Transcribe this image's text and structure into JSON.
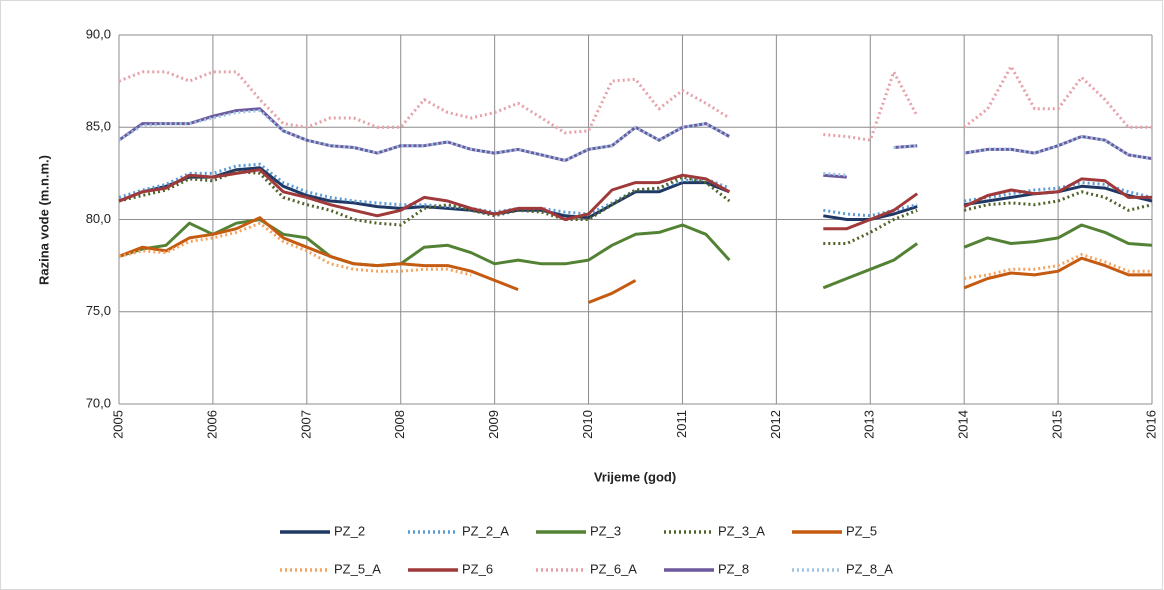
{
  "chart_data": {
    "type": "line",
    "ylabel": "Razina vode (m.n.m.)",
    "xlabel": "Vrijeme (god)",
    "x": [
      2005,
      2005.25,
      2005.5,
      2005.75,
      2006,
      2006.25,
      2006.5,
      2006.75,
      2007,
      2007.25,
      2007.5,
      2007.75,
      2008,
      2008.25,
      2008.5,
      2008.75,
      2009,
      2009.25,
      2009.5,
      2009.75,
      2010,
      2010.25,
      2010.5,
      2010.75,
      2011,
      2011.25,
      2011.5,
      2011.75,
      2012,
      2012.25,
      2012.5,
      2012.75,
      2013,
      2013.25,
      2013.5,
      2013.75,
      2014,
      2014.25,
      2014.5,
      2014.75,
      2015,
      2015.25,
      2015.5,
      2015.75,
      2016
    ],
    "xlim": [
      2005,
      2016
    ],
    "xticks": [
      2005,
      2006,
      2007,
      2008,
      2009,
      2010,
      2011,
      2012,
      2013,
      2014,
      2015,
      2016
    ],
    "ylim": [
      70,
      90
    ],
    "yticks": [
      {
        "value": 70,
        "label": "70,0"
      },
      {
        "value": 75,
        "label": "75,0"
      },
      {
        "value": 80,
        "label": "80,0"
      },
      {
        "value": 85,
        "label": "85,0"
      },
      {
        "value": 90,
        "label": "90,0"
      }
    ],
    "grid": true,
    "legend": "bottom",
    "series": [
      {
        "name": "PZ_2",
        "color": "#1f3864",
        "dashed": false,
        "values": [
          81,
          81.5,
          81.8,
          82.3,
          82.3,
          82.7,
          82.8,
          81.8,
          81.3,
          81.0,
          80.9,
          80.7,
          80.6,
          80.7,
          80.6,
          80.5,
          80.3,
          80.5,
          80.5,
          80.2,
          80.1,
          80.8,
          81.5,
          81.5,
          82.0,
          82.0,
          81.5,
          null,
          null,
          null,
          80.2,
          80.0,
          80.0,
          80.3,
          80.7,
          null,
          80.8,
          81.0,
          81.2,
          81.4,
          81.5,
          81.8,
          81.7,
          81.3,
          81.0
        ]
      },
      {
        "name": "PZ_2_A",
        "color": "#5b9bd5",
        "dashed": true,
        "values": [
          81.2,
          81.6,
          81.9,
          82.5,
          82.5,
          82.9,
          83.0,
          82.0,
          81.5,
          81.2,
          81.0,
          80.9,
          80.8,
          80.8,
          80.7,
          80.6,
          80.4,
          80.6,
          80.6,
          80.4,
          80.3,
          80.9,
          81.6,
          81.7,
          82.1,
          82.2,
          81.7,
          null,
          null,
          null,
          80.5,
          80.3,
          80.2,
          80.5,
          80.8,
          null,
          81.0,
          81.2,
          81.4,
          81.6,
          81.7,
          82.0,
          81.9,
          81.5,
          81.2
        ]
      },
      {
        "name": "PZ_3",
        "color": "#548235",
        "dashed": false,
        "values": [
          78.0,
          78.4,
          78.6,
          79.8,
          79.2,
          79.8,
          80.0,
          79.2,
          79.0,
          78.0,
          77.6,
          77.5,
          77.6,
          78.5,
          78.6,
          78.2,
          77.6,
          77.8,
          77.6,
          77.6,
          77.8,
          78.6,
          79.2,
          79.3,
          79.7,
          79.2,
          77.8,
          null,
          null,
          null,
          76.3,
          76.8,
          77.3,
          77.8,
          78.7,
          null,
          78.5,
          79.0,
          78.7,
          78.8,
          79.0,
          79.7,
          79.3,
          78.7,
          78.6
        ]
      },
      {
        "name": "PZ_3_A",
        "color": "#4f6228",
        "dashed": true,
        "values": [
          81.0,
          81.3,
          81.6,
          82.2,
          82.1,
          82.6,
          82.5,
          81.2,
          80.8,
          80.5,
          80.0,
          79.8,
          79.7,
          80.6,
          80.8,
          80.5,
          80.2,
          80.5,
          80.4,
          80.0,
          80.0,
          80.8,
          81.6,
          81.7,
          82.3,
          82.0,
          81.0,
          null,
          null,
          null,
          78.7,
          78.7,
          79.3,
          80.0,
          80.5,
          null,
          80.5,
          80.8,
          80.9,
          80.8,
          81.0,
          81.5,
          81.2,
          80.5,
          80.8
        ]
      },
      {
        "name": "PZ_5",
        "color": "#c55a11",
        "dashed": false,
        "values": [
          78.0,
          78.5,
          78.3,
          79.0,
          79.2,
          79.5,
          80.1,
          79.0,
          78.5,
          78.0,
          77.6,
          77.5,
          77.6,
          77.5,
          77.5,
          77.2,
          76.7,
          76.2,
          null,
          null,
          75.5,
          76.0,
          76.7,
          null,
          null,
          null,
          null,
          null,
          null,
          null,
          null,
          null,
          null,
          null,
          null,
          null,
          76.3,
          76.8,
          77.1,
          77.0,
          77.2,
          77.9,
          77.5,
          77.0,
          77.0
        ]
      },
      {
        "name": "PZ_5_A",
        "color": "#f4a460",
        "dashed": true,
        "values": [
          78.0,
          78.3,
          78.2,
          78.8,
          79.0,
          79.3,
          79.8,
          78.8,
          78.3,
          77.6,
          77.3,
          77.2,
          77.2,
          77.3,
          77.3,
          77.0,
          null,
          null,
          null,
          null,
          null,
          null,
          null,
          null,
          null,
          null,
          null,
          null,
          null,
          null,
          null,
          null,
          null,
          null,
          null,
          null,
          76.8,
          77.0,
          77.3,
          77.3,
          77.5,
          78.1,
          77.7,
          77.2,
          77.2
        ]
      },
      {
        "name": "PZ_6",
        "color": "#a0393a",
        "dashed": false,
        "values": [
          81.0,
          81.5,
          81.7,
          82.4,
          82.3,
          82.5,
          82.7,
          81.5,
          81.2,
          80.8,
          80.5,
          80.2,
          80.5,
          81.2,
          81.0,
          80.6,
          80.3,
          80.6,
          80.6,
          80.0,
          80.3,
          81.6,
          82.0,
          82.0,
          82.4,
          82.2,
          81.5,
          null,
          null,
          null,
          79.5,
          79.5,
          80.0,
          80.5,
          81.4,
          null,
          80.7,
          81.3,
          81.6,
          81.4,
          81.5,
          82.2,
          82.1,
          81.2,
          81.2
        ]
      },
      {
        "name": "PZ_6_A",
        "color": "#e6a0a8",
        "dashed": true,
        "values": [
          87.5,
          88.0,
          88.0,
          87.5,
          88.0,
          88.0,
          86.5,
          85.2,
          85.0,
          85.5,
          85.5,
          85.0,
          85.0,
          86.5,
          85.8,
          85.5,
          85.8,
          86.3,
          85.5,
          84.7,
          84.8,
          87.5,
          87.6,
          86.0,
          87.0,
          86.3,
          85.5,
          null,
          null,
          null,
          84.6,
          84.5,
          84.3,
          88.0,
          85.6,
          null,
          85.0,
          86.0,
          88.3,
          86.0,
          86.0,
          87.7,
          86.5,
          85.0,
          85.0
        ]
      },
      {
        "name": "PZ_8",
        "color": "#6c5a9c",
        "dashed": false,
        "values": [
          84.3,
          85.2,
          85.2,
          85.2,
          85.6,
          85.9,
          86.0,
          84.8,
          84.3,
          84.0,
          83.9,
          83.6,
          84.0,
          84.0,
          84.2,
          83.8,
          83.6,
          83.8,
          83.5,
          83.2,
          83.8,
          84.0,
          85.0,
          84.3,
          85.0,
          85.2,
          84.5,
          null,
          null,
          null,
          82.4,
          82.3,
          null,
          83.9,
          84.0,
          null,
          83.6,
          83.8,
          83.8,
          83.6,
          84.0,
          84.5,
          84.3,
          83.5,
          83.3
        ]
      },
      {
        "name": "PZ_8_A",
        "color": "#9dc3e6",
        "dashed": true,
        "values": [
          84.3,
          85.1,
          85.2,
          85.2,
          85.5,
          85.8,
          85.9,
          84.8,
          84.3,
          84.0,
          83.9,
          83.6,
          84.0,
          84.0,
          84.2,
          83.8,
          83.6,
          83.8,
          83.5,
          83.2,
          83.8,
          84.0,
          85.0,
          84.3,
          85.0,
          85.2,
          84.5,
          null,
          null,
          null,
          82.5,
          82.4,
          null,
          83.9,
          84.0,
          null,
          83.6,
          83.8,
          83.8,
          83.6,
          84.0,
          84.5,
          84.3,
          83.5,
          83.3
        ]
      }
    ]
  }
}
